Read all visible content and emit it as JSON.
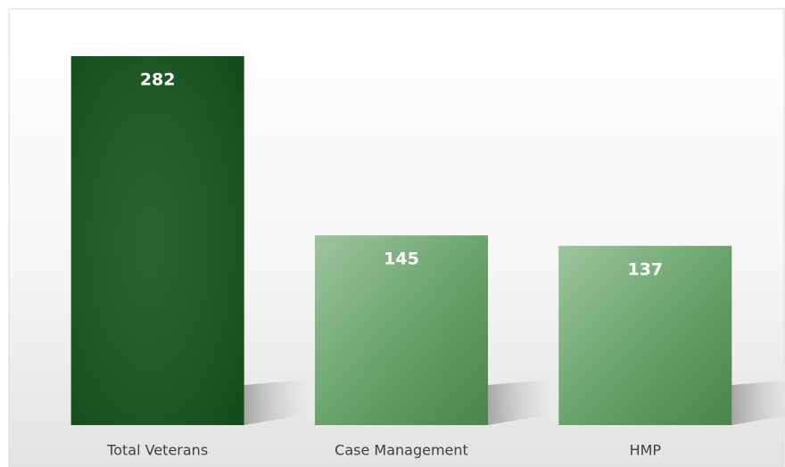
{
  "chart_data": {
    "type": "bar",
    "categories": [
      "Total Veterans",
      "Case Management",
      "HMP"
    ],
    "values": [
      282,
      145,
      137
    ],
    "colors": [
      "#17561f",
      "#4f9452",
      "#4f9452"
    ]
  }
}
